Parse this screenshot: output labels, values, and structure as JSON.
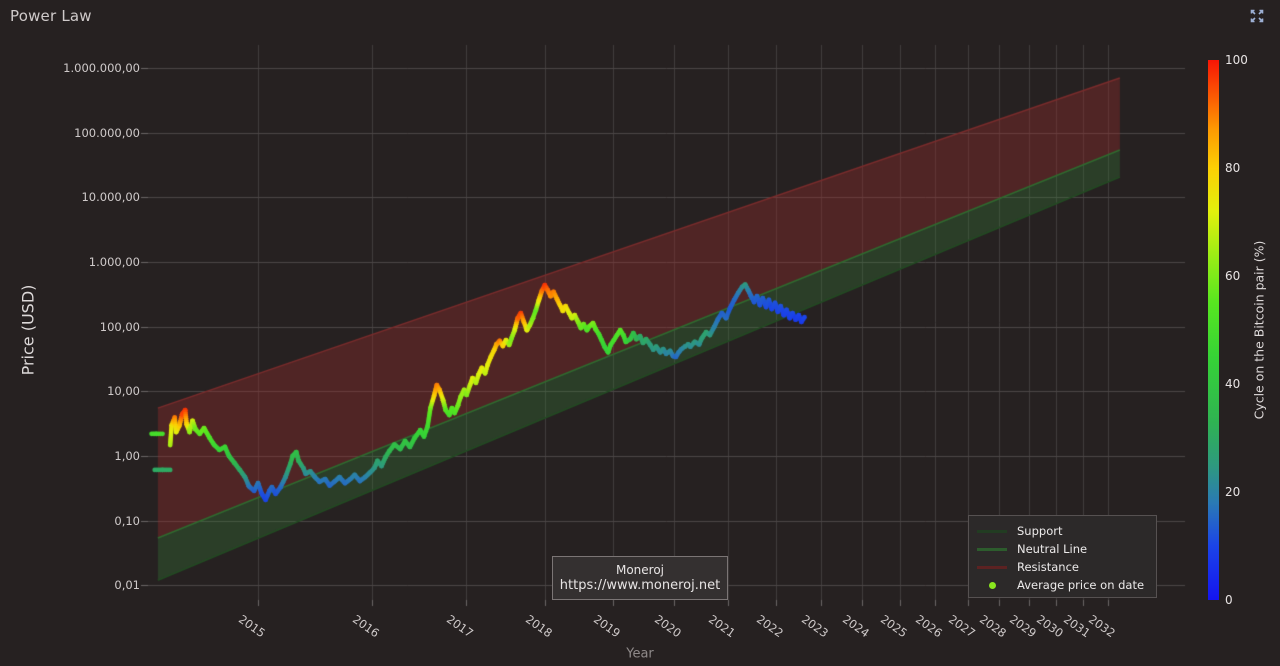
{
  "header": {
    "title": "Power Law"
  },
  "axes": {
    "x": {
      "label": "Year",
      "ticks": [
        2015,
        2016,
        2017,
        2018,
        2019,
        2020,
        2021,
        2022,
        2023,
        2024,
        2025,
        2026,
        2027,
        2028,
        2029,
        2030,
        2031,
        2032
      ]
    },
    "y": {
      "label": "Price (USD)",
      "ticks": [
        {
          "value": 1000000,
          "label": "1.000.000,00"
        },
        {
          "value": 100000,
          "label": "100.000,00"
        },
        {
          "value": 10000,
          "label": "10.000,00"
        },
        {
          "value": 1000,
          "label": "1.000,00"
        },
        {
          "value": 100,
          "label": "100,00"
        },
        {
          "value": 10,
          "label": "10,00"
        },
        {
          "value": 1,
          "label": "1,00"
        },
        {
          "value": 0.1,
          "label": "0,10"
        },
        {
          "value": 0.01,
          "label": "0,01"
        }
      ]
    }
  },
  "colorbar": {
    "label": "Cycle on the Bitcoin pair (%)",
    "ticks": [
      0,
      20,
      40,
      60,
      80,
      100
    ],
    "min": 0,
    "max": 100,
    "stops": [
      [
        0.0,
        "#1414f0"
      ],
      [
        0.1,
        "#1b44e8"
      ],
      [
        0.18,
        "#2a7ab4"
      ],
      [
        0.25,
        "#2e9a7e"
      ],
      [
        0.33,
        "#2fb352"
      ],
      [
        0.45,
        "#36d336"
      ],
      [
        0.55,
        "#57e620"
      ],
      [
        0.63,
        "#95ec16"
      ],
      [
        0.72,
        "#e3f00c"
      ],
      [
        0.8,
        "#fccf04"
      ],
      [
        0.87,
        "#fd9b02"
      ],
      [
        0.93,
        "#fb5d03"
      ],
      [
        1.0,
        "#f71505"
      ]
    ]
  },
  "legend": {
    "items": [
      {
        "label": "Support",
        "swatch": "line",
        "color": "#223c22"
      },
      {
        "label": "Neutral Line",
        "swatch": "line",
        "color": "#2d5c2d"
      },
      {
        "label": "Resistance",
        "swatch": "line",
        "color": "#5c2222"
      },
      {
        "label": "Average price on date",
        "swatch": "dot",
        "color": "#8ae61e"
      }
    ]
  },
  "watermark": {
    "line1": "Moneroj",
    "line2": "https://www.moneroj.net"
  },
  "colors": {
    "background": "#262121",
    "grid_vertical": "#413d3d",
    "grid_horizontal": "#4c4747",
    "tick_mark": "#6b6666",
    "resistance_band_fill": "rgba(150,45,45,0.38)",
    "support_band_fill": "rgba(55,130,55,0.30)",
    "resistance_line": "#7a2c2c",
    "neutral_line": "#2f6b2f",
    "support_line": "#234a23"
  },
  "chart_data": {
    "type": "scatter",
    "title": "Power Law",
    "xlabel": "Year",
    "ylabel": "Price (USD)",
    "x_scale": "log(years since 2011)",
    "y_scale": "log",
    "xlim": [
      2014.2,
      2032.6
    ],
    "ylim": [
      0.01,
      1000000
    ],
    "grid": true,
    "legend_position": "lower right",
    "colorbar_label": "Cycle on the Bitcoin pair (%)",
    "bands": {
      "resistance_line": [
        [
          2014.29,
          5.5
        ],
        [
          2032.5,
          695000
        ]
      ],
      "neutral_line": [
        [
          2014.29,
          0.054
        ],
        [
          2032.5,
          53600
        ]
      ],
      "support_line": [
        [
          2014.29,
          0.012
        ],
        [
          2032.5,
          20500
        ]
      ]
    },
    "series_note": "points = [year, price_usd, cycle_on_btc_pair_pct]",
    "segments": [
      [
        [
          2014.25,
          2.2,
          50
        ],
        [
          2014.28,
          2.2,
          50
        ],
        [
          2014.32,
          2.2,
          50
        ]
      ],
      [
        [
          2014.27,
          0.61,
          30
        ],
        [
          2014.32,
          0.61,
          30
        ],
        [
          2014.37,
          0.61,
          30
        ]
      ],
      [
        [
          2014.37,
          1.48,
          65
        ],
        [
          2014.38,
          3.0,
          75
        ],
        [
          2014.4,
          3.9,
          90
        ],
        [
          2014.41,
          2.35,
          72
        ],
        [
          2014.43,
          2.9,
          80
        ],
        [
          2014.45,
          4.4,
          95
        ],
        [
          2014.47,
          5.1,
          97
        ],
        [
          2014.48,
          3.1,
          80
        ],
        [
          2014.5,
          2.35,
          62
        ],
        [
          2014.52,
          3.5,
          70
        ],
        [
          2014.54,
          2.6,
          58
        ],
        [
          2014.57,
          2.2,
          55
        ],
        [
          2014.6,
          2.7,
          58
        ],
        [
          2014.64,
          1.9,
          52
        ],
        [
          2014.67,
          1.5,
          48
        ],
        [
          2014.71,
          1.24,
          45
        ],
        [
          2014.75,
          1.38,
          47
        ],
        [
          2014.78,
          1.0,
          40
        ],
        [
          2014.82,
          0.78,
          35
        ],
        [
          2014.86,
          0.61,
          30
        ],
        [
          2014.9,
          0.47,
          25
        ],
        [
          2014.93,
          0.34,
          18
        ],
        [
          2014.97,
          0.29,
          14
        ],
        [
          2015.0,
          0.38,
          18
        ],
        [
          2015.03,
          0.26,
          12
        ],
        [
          2015.06,
          0.21,
          10
        ],
        [
          2015.09,
          0.29,
          14
        ],
        [
          2015.11,
          0.33,
          16
        ],
        [
          2015.14,
          0.26,
          12
        ],
        [
          2015.18,
          0.33,
          15
        ],
        [
          2015.22,
          0.47,
          22
        ],
        [
          2015.26,
          0.75,
          30
        ],
        [
          2015.28,
          1.0,
          36
        ],
        [
          2015.31,
          1.15,
          38
        ],
        [
          2015.33,
          0.84,
          32
        ],
        [
          2015.37,
          0.65,
          26
        ],
        [
          2015.39,
          0.53,
          22
        ],
        [
          2015.43,
          0.58,
          24
        ],
        [
          2015.47,
          0.47,
          20
        ],
        [
          2015.51,
          0.4,
          17
        ],
        [
          2015.56,
          0.44,
          18
        ],
        [
          2015.6,
          0.35,
          15
        ],
        [
          2015.65,
          0.41,
          17
        ],
        [
          2015.69,
          0.47,
          19
        ],
        [
          2015.74,
          0.38,
          16
        ],
        [
          2015.79,
          0.44,
          18
        ],
        [
          2015.83,
          0.51,
          20
        ],
        [
          2015.88,
          0.41,
          17
        ],
        [
          2015.93,
          0.47,
          19
        ],
        [
          2015.98,
          0.56,
          22
        ],
        [
          2016.02,
          0.65,
          24
        ],
        [
          2016.05,
          0.84,
          28
        ],
        [
          2016.09,
          0.7,
          25
        ],
        [
          2016.13,
          0.96,
          30
        ],
        [
          2016.17,
          1.2,
          34
        ],
        [
          2016.22,
          1.5,
          38
        ],
        [
          2016.28,
          1.28,
          35
        ],
        [
          2016.33,
          1.7,
          40
        ],
        [
          2016.38,
          1.38,
          37
        ],
        [
          2016.43,
          1.9,
          42
        ],
        [
          2016.49,
          2.5,
          46
        ],
        [
          2016.53,
          2.0,
          44
        ],
        [
          2016.57,
          2.9,
          48
        ],
        [
          2016.6,
          5.5,
          58
        ],
        [
          2016.64,
          8.5,
          78
        ],
        [
          2016.67,
          12.5,
          90
        ],
        [
          2016.7,
          10.5,
          85
        ],
        [
          2016.74,
          7.3,
          70
        ],
        [
          2016.77,
          5.1,
          55
        ],
        [
          2016.81,
          4.3,
          50
        ],
        [
          2016.84,
          5.5,
          55
        ],
        [
          2016.87,
          4.6,
          52
        ],
        [
          2016.91,
          6.1,
          58
        ],
        [
          2016.94,
          8.2,
          62
        ],
        [
          2016.98,
          10.5,
          65
        ],
        [
          2017.01,
          8.8,
          60
        ],
        [
          2017.05,
          12.5,
          68
        ],
        [
          2017.08,
          16,
          72
        ],
        [
          2017.12,
          13.5,
          66
        ],
        [
          2017.15,
          17.9,
          70
        ],
        [
          2017.19,
          23,
          74
        ],
        [
          2017.23,
          19,
          68
        ],
        [
          2017.26,
          25.5,
          72
        ],
        [
          2017.3,
          34,
          76
        ],
        [
          2017.34,
          43,
          78
        ],
        [
          2017.37,
          53,
          84
        ],
        [
          2017.41,
          60,
          90
        ],
        [
          2017.45,
          50,
          80
        ],
        [
          2017.49,
          62,
          74
        ],
        [
          2017.53,
          52,
          64
        ],
        [
          2017.56,
          66,
          60
        ],
        [
          2017.6,
          88,
          68
        ],
        [
          2017.64,
          135,
          92
        ],
        [
          2017.68,
          162,
          96
        ],
        [
          2017.72,
          118,
          85
        ],
        [
          2017.76,
          88,
          72
        ],
        [
          2017.8,
          106,
          66
        ],
        [
          2017.84,
          135,
          60
        ],
        [
          2017.88,
          181,
          56
        ],
        [
          2017.92,
          258,
          75
        ],
        [
          2017.96,
          355,
          90
        ],
        [
          2018.0,
          438,
          97
        ],
        [
          2018.04,
          366,
          92
        ],
        [
          2018.08,
          295,
          88
        ],
        [
          2018.12,
          345,
          90
        ],
        [
          2018.17,
          265,
          85
        ],
        [
          2018.21,
          215,
          80
        ],
        [
          2018.25,
          175,
          76
        ],
        [
          2018.29,
          207,
          78
        ],
        [
          2018.34,
          162,
          72
        ],
        [
          2018.38,
          135,
          68
        ],
        [
          2018.42,
          150,
          70
        ],
        [
          2018.47,
          118,
          62
        ],
        [
          2018.51,
          95,
          56
        ],
        [
          2018.55,
          109,
          58
        ],
        [
          2018.6,
          88,
          52
        ],
        [
          2018.64,
          102,
          55
        ],
        [
          2018.69,
          113,
          60
        ],
        [
          2018.73,
          91,
          55
        ],
        [
          2018.78,
          76,
          50
        ],
        [
          2018.82,
          62,
          48
        ],
        [
          2018.87,
          48,
          45
        ],
        [
          2018.92,
          40,
          45
        ],
        [
          2018.96,
          52,
          48
        ],
        [
          2019.01,
          62,
          50
        ],
        [
          2019.06,
          74,
          52
        ],
        [
          2019.11,
          88,
          55
        ],
        [
          2019.16,
          74,
          50
        ],
        [
          2019.2,
          58,
          46
        ],
        [
          2019.27,
          64,
          40
        ],
        [
          2019.32,
          79,
          38
        ],
        [
          2019.37,
          64,
          34
        ],
        [
          2019.43,
          71,
          30
        ],
        [
          2019.48,
          56,
          28
        ],
        [
          2019.53,
          64,
          30
        ],
        [
          2019.6,
          52,
          26
        ],
        [
          2019.65,
          44,
          24
        ],
        [
          2019.7,
          49,
          26
        ],
        [
          2019.77,
          40,
          22
        ],
        [
          2019.82,
          45,
          24
        ],
        [
          2019.87,
          38,
          20
        ],
        [
          2019.94,
          42,
          22
        ],
        [
          2019.99,
          35,
          18
        ],
        [
          2020.04,
          34,
          15
        ],
        [
          2020.09,
          40,
          18
        ],
        [
          2020.14,
          45,
          20
        ],
        [
          2020.2,
          49,
          22
        ],
        [
          2020.26,
          53,
          24
        ],
        [
          2020.3,
          49,
          22
        ],
        [
          2020.38,
          58,
          25
        ],
        [
          2020.46,
          53,
          22
        ],
        [
          2020.51,
          66,
          26
        ],
        [
          2020.59,
          82,
          28
        ],
        [
          2020.66,
          74,
          25
        ],
        [
          2020.74,
          98,
          20
        ],
        [
          2020.81,
          128,
          17
        ],
        [
          2020.89,
          162,
          14
        ],
        [
          2020.97,
          135,
          16
        ],
        [
          2021.05,
          194,
          13
        ],
        [
          2021.13,
          258,
          15
        ],
        [
          2021.21,
          332,
          18
        ],
        [
          2021.29,
          412,
          22
        ],
        [
          2021.35,
          447,
          25
        ],
        [
          2021.41,
          366,
          20
        ],
        [
          2021.47,
          295,
          16
        ],
        [
          2021.53,
          240,
          13
        ],
        [
          2021.59,
          295,
          15
        ],
        [
          2021.65,
          215,
          12
        ],
        [
          2021.71,
          275,
          14
        ],
        [
          2021.78,
          200,
          11
        ],
        [
          2021.84,
          258,
          13
        ],
        [
          2021.9,
          187,
          10
        ],
        [
          2021.97,
          232,
          12
        ],
        [
          2022.03,
          169,
          10
        ],
        [
          2022.09,
          207,
          12
        ],
        [
          2022.16,
          150,
          9
        ],
        [
          2022.22,
          181,
          11
        ],
        [
          2022.29,
          135,
          9
        ],
        [
          2022.35,
          162,
          11
        ],
        [
          2022.42,
          128,
          8
        ],
        [
          2022.49,
          150,
          10
        ],
        [
          2022.55,
          118,
          8
        ],
        [
          2022.62,
          140,
          10
        ]
      ]
    ]
  }
}
